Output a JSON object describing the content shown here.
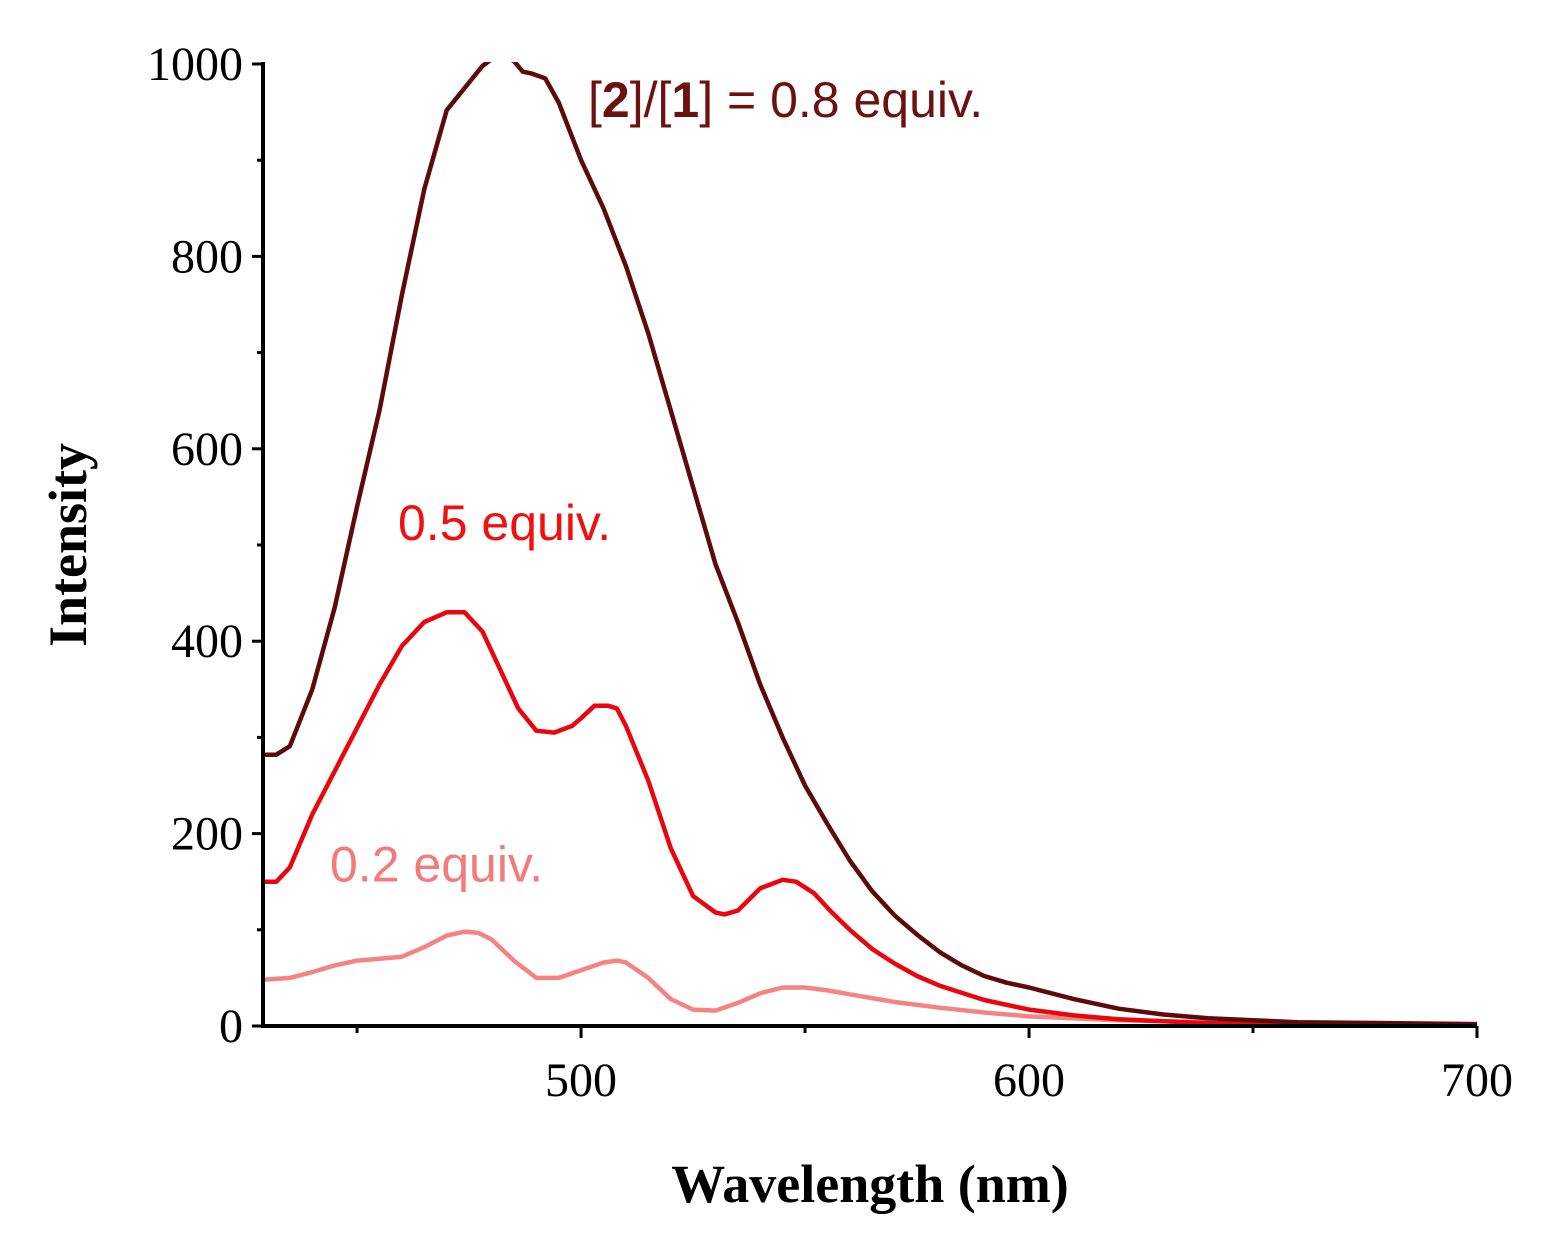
{
  "chart_data": {
    "type": "line",
    "title": "",
    "xlabel": "Wavelength (nm)",
    "ylabel": "Intensity",
    "xlim": [
      429,
      700
    ],
    "ylim": [
      0,
      1000
    ],
    "x_ticks": [
      500,
      600,
      700
    ],
    "x_tick_labels": [
      "500",
      "600",
      "700"
    ],
    "y_ticks": [
      0,
      200,
      400,
      600,
      800,
      1000
    ],
    "y_tick_labels": [
      "0",
      "200",
      "400",
      "600",
      "800",
      "1000"
    ],
    "grid": false,
    "legend": "none",
    "annotations": [
      {
        "id": "08",
        "parts": [
          [
            "[",
            false
          ],
          [
            "2",
            true
          ],
          [
            "]/[",
            false
          ],
          [
            "1",
            true
          ],
          [
            "] = 0.8 equiv.",
            false
          ]
        ],
        "color": "#6b1111",
        "at": [
          431,
          945
        ]
      },
      {
        "id": "05",
        "parts": [
          [
            "0.5 equiv.",
            false
          ]
        ],
        "color": "#ee1111",
        "at": [
          431,
          505
        ]
      },
      {
        "id": "02",
        "parts": [
          [
            "0.2 equiv.",
            false
          ]
        ],
        "color": "#f27b7b",
        "at": [
          431,
          150
        ]
      }
    ],
    "series": [
      {
        "id": "08",
        "color": "#5c0a0a",
        "x": [
          429,
          432,
          435,
          440,
          445,
          450,
          455,
          460,
          465,
          470,
          474,
          478,
          480,
          482,
          485,
          487,
          489,
          492,
          495,
          500,
          505,
          510,
          515,
          520,
          525,
          530,
          535,
          540,
          545,
          550,
          555,
          560,
          565,
          570,
          575,
          580,
          585,
          590,
          595,
          600,
          610,
          620,
          630,
          640,
          650,
          660,
          680,
          700
        ],
        "y": [
          282,
          282,
          291,
          350,
          435,
          540,
          640,
          760,
          870,
          952,
          975,
          998,
          1005,
          1010,
          1003,
          992,
          990,
          985,
          960,
          900,
          850,
          790,
          720,
          640,
          560,
          480,
          420,
          355,
          300,
          250,
          210,
          172,
          140,
          115,
          95,
          77,
          63,
          52,
          45,
          40,
          28,
          18,
          12,
          8,
          6,
          4,
          3,
          2
        ]
      },
      {
        "id": "05",
        "color": "#e8070f",
        "x": [
          429,
          432,
          435,
          440,
          445,
          450,
          455,
          460,
          465,
          470,
          474,
          478,
          482,
          486,
          490,
          494,
          498,
          500,
          503,
          506,
          508,
          510,
          515,
          520,
          525,
          530,
          532,
          535,
          540,
          545,
          548,
          552,
          556,
          560,
          565,
          570,
          575,
          580,
          590,
          600,
          610,
          620,
          640,
          660,
          700
        ],
        "y": [
          150,
          150,
          165,
          220,
          265,
          310,
          355,
          395,
          420,
          430,
          430,
          410,
          370,
          330,
          307,
          305,
          312,
          320,
          333,
          333,
          330,
          312,
          255,
          185,
          135,
          118,
          116,
          120,
          143,
          152,
          150,
          138,
          118,
          100,
          80,
          65,
          52,
          42,
          27,
          17,
          11,
          7,
          3,
          2,
          1
        ]
      },
      {
        "id": "02",
        "color": "#f48484",
        "x": [
          429,
          435,
          440,
          445,
          450,
          455,
          460,
          465,
          470,
          474,
          477,
          480,
          485,
          490,
          495,
          500,
          505,
          508,
          510,
          515,
          520,
          525,
          530,
          535,
          540,
          545,
          550,
          555,
          560,
          570,
          580,
          590,
          600,
          620,
          640,
          660,
          700
        ],
        "y": [
          48,
          50,
          56,
          63,
          68,
          70,
          72,
          82,
          94,
          98,
          97,
          90,
          68,
          50,
          50,
          58,
          66,
          68,
          66,
          50,
          28,
          17,
          16,
          24,
          34,
          40,
          40,
          37,
          33,
          25,
          19,
          14,
          10,
          6,
          4,
          2,
          1
        ]
      }
    ]
  }
}
